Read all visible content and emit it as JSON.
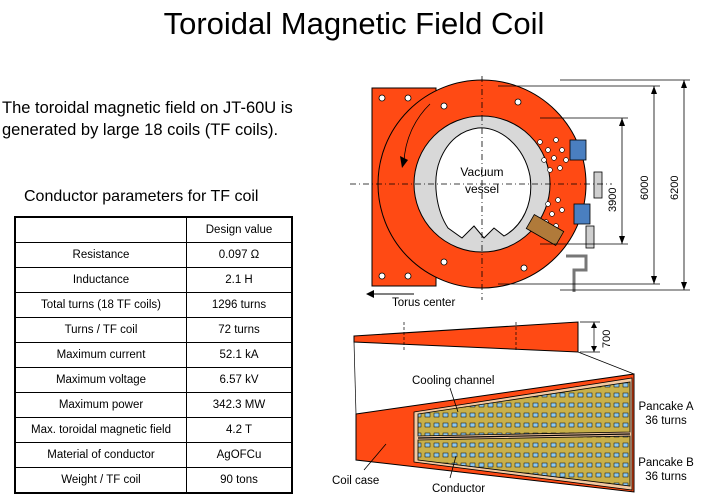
{
  "title": "Toroidal Magnetic Field Coil",
  "intro_text": "The toroidal magnetic field on JT-60U is generated by large 18 coils (TF coils).",
  "table": {
    "caption": "Conductor parameters for TF coil",
    "header": "Design value",
    "rows": [
      {
        "name": "Resistance",
        "value": "0.097 Ω"
      },
      {
        "name": "Inductance",
        "value": "2.1 H"
      },
      {
        "name": "Total turns (18 TF coils)",
        "value": "1296 turns"
      },
      {
        "name": "Turns / TF coil",
        "value": "72 turns"
      },
      {
        "name": "Maximum current",
        "value": "52.1 kA"
      },
      {
        "name": "Maximum voltage",
        "value": "6.57 kV"
      },
      {
        "name": "Maximum power",
        "value": "342.3 MW"
      },
      {
        "name": "Max. toroidal magnetic field",
        "value": "4.2 T"
      },
      {
        "name": "Material of conductor",
        "value": "AgOFCu"
      },
      {
        "name": "Weight / TF coil",
        "value": "90 tons"
      }
    ]
  },
  "diagram": {
    "vacuum_label": "Vacuum",
    "vessel_label": "vessel",
    "dim_3900": "3900",
    "dim_6000": "6000",
    "dim_6200": "6200",
    "torus_center": "Torus center",
    "dim_700": "700",
    "cooling_channel": "Cooling channel",
    "pancake_a_name": "Pancake A",
    "pancake_a_turns": "36 turns",
    "pancake_b_name": "Pancake B",
    "pancake_b_turns": "36 turns",
    "coil_case": "Coil case",
    "conductor": "Conductor"
  },
  "colors": {
    "coil_orange": "#ff4a14",
    "inner_gray": "#d8d8d8",
    "conductor_yellow": "#c8b04a",
    "channel_blue": "#8ec8ec"
  }
}
